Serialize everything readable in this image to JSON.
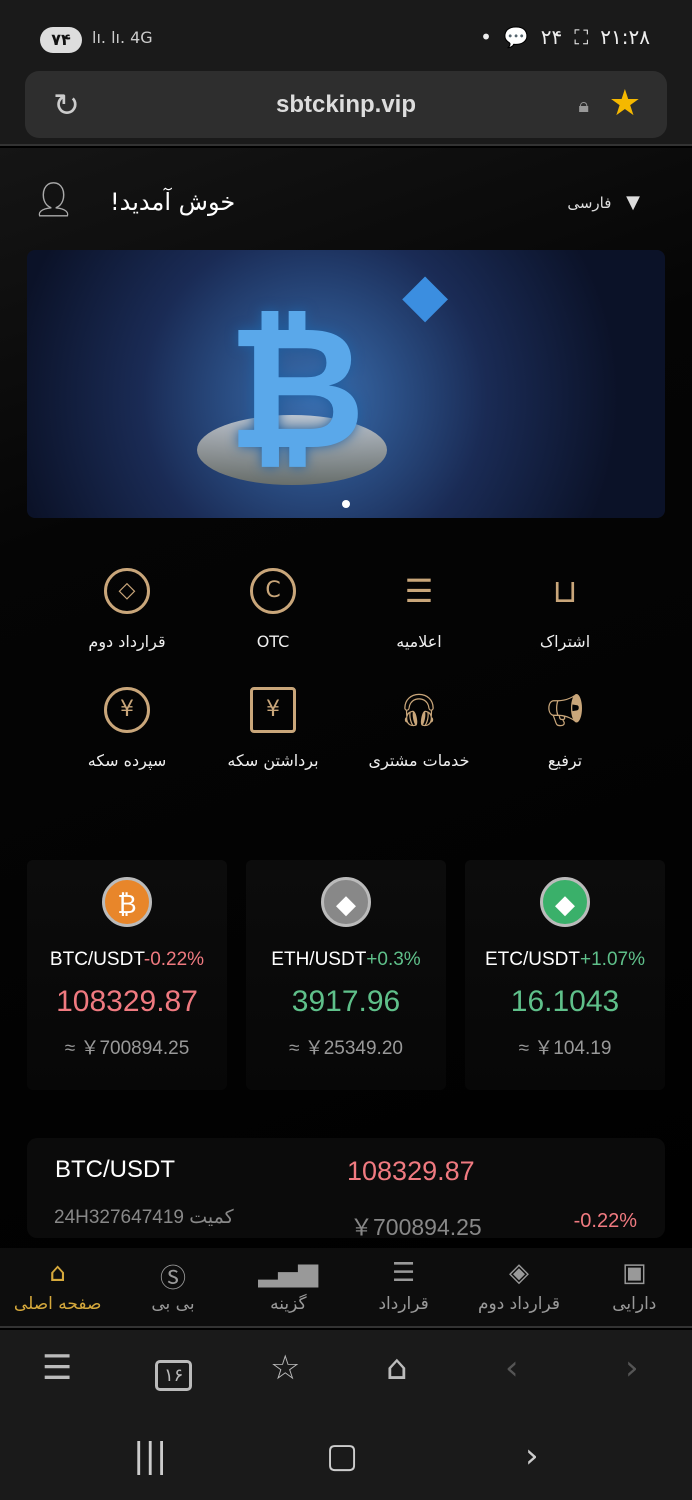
{
  "status_bar": {
    "battery": "۷۴",
    "network": "4G",
    "notifications_count": "۲۴",
    "time": "۲۱:۲۸"
  },
  "browser": {
    "url": "sbtckinp.vip",
    "icons": [
      "reload-icon",
      "lock-icon",
      "star-icon"
    ]
  },
  "header": {
    "welcome": "!خوش آمدید",
    "language": "فارسی"
  },
  "colors": {
    "accent_gold": "#c9a67a",
    "active_nav": "#d6a93c",
    "down_red": "#f07a80",
    "up_green": "#5fc08a",
    "background": "#000000"
  },
  "grid": [
    {
      "label": "قرارداد دوم",
      "icon": "diamond-circle-icon"
    },
    {
      "label": "OTC",
      "icon": "c-circle-icon"
    },
    {
      "label": "اعلامیه",
      "icon": "notice-board-icon"
    },
    {
      "label": "اشتراک",
      "icon": "basket-icon"
    },
    {
      "label": "سپرده سکه",
      "icon": "yen-plus-icon"
    },
    {
      "label": "برداشتن سکه",
      "icon": "atm-yen-icon"
    },
    {
      "label": "خدمات مشتری",
      "icon": "headset-icon"
    },
    {
      "label": "ترفیع",
      "icon": "megaphone-icon"
    }
  ],
  "tickers": [
    {
      "pair": "BTC/USDT",
      "change": "-0.22%",
      "price": "108329.87",
      "cny": "≈ ￥700894.25"
    },
    {
      "pair": "ETH/USDT",
      "change": "+0.3%",
      "price": "3917.96",
      "cny": "≈ ￥25349.20"
    },
    {
      "pair": "ETC/USDT",
      "change": "+1.07%",
      "price": "16.1043",
      "cny": "≈ ￥104.19"
    }
  ],
  "market_row": {
    "pair": "BTC/USDT",
    "price": "108329.87",
    "volume": "24H327647419 کمیت",
    "cny": "￥700894.25",
    "change": "-0.22%"
  },
  "bottom_nav": [
    {
      "label": "صفحه اصلی",
      "icon": "home-icon",
      "active": true
    },
    {
      "label": "بی بی",
      "icon": "dollar-circle-icon"
    },
    {
      "label": "گزینه",
      "icon": "bar-chart-icon"
    },
    {
      "label": "قرارداد",
      "icon": "document-icon"
    },
    {
      "label": "قرارداد دوم",
      "icon": "diamond-circle-icon"
    },
    {
      "label": "دارایی",
      "icon": "wallet-icon"
    }
  ],
  "browser_bar": {
    "tabs_count": "۱۶"
  }
}
